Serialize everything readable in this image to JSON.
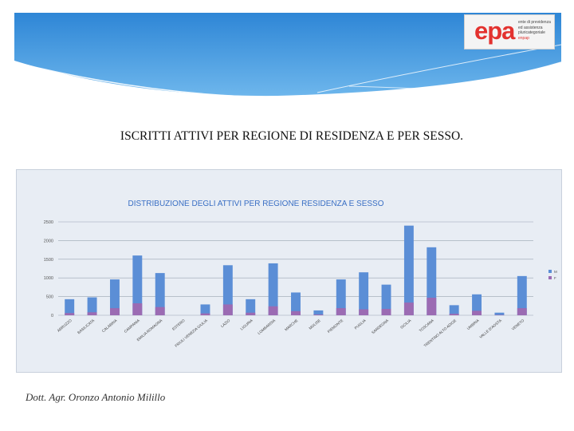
{
  "logo": {
    "mark": "epa",
    "lines": [
      "ente di previdenza",
      "ed assistenza",
      "pluricategoriale"
    ],
    "sub": "enpap"
  },
  "slide": {
    "title": "ISCRITTI ATTIVI PER REGIONE DI RESIDENZA E PER SESSO.",
    "footer": "Dott. Agr. Oronzo Antonio Milillo"
  },
  "colors": {
    "series_m": "#5b8ed6",
    "series_f": "#9b6bb3",
    "chart_title": "#3a6fc4",
    "banner": "#2f8bd8"
  },
  "chart_data": {
    "type": "bar",
    "title": "DISTRIBUZIONE DEGLI  ATTIVI PER REGIONE RESIDENZA E SESSO",
    "ylim": [
      0,
      2500
    ],
    "yticks": [
      0,
      500,
      1000,
      1500,
      2000,
      2500
    ],
    "grid": true,
    "legend_position": "right",
    "categories": [
      "ABRUZZO",
      "BASILICATA",
      "CALABRIA",
      "CAMPANIA",
      "EMILIA ROMAGNA",
      "ESTERO",
      "FRIULI VENEZIA GIULIA",
      "LAZIO",
      "LIGURIA",
      "LOMBARDIA",
      "MARCHE",
      "MOLISE",
      "PIEMONTE",
      "PUGLIA",
      "SARDEGNA",
      "SICILIA",
      "TOSCANA",
      "TRENTINO ALTO ADIGE",
      "UMBRIA",
      "VALLE D'AOSTA",
      "VENETO"
    ],
    "series": [
      {
        "name": "M",
        "values": [
          430,
          480,
          960,
          1600,
          1130,
          0,
          290,
          1340,
          430,
          1390,
          610,
          130,
          960,
          1150,
          820,
          2400,
          1820,
          270,
          560,
          70,
          1050
        ]
      },
      {
        "name": "F",
        "values": [
          60,
          80,
          190,
          320,
          220,
          0,
          50,
          290,
          70,
          240,
          110,
          20,
          190,
          160,
          170,
          340,
          470,
          40,
          120,
          10,
          190
        ]
      }
    ]
  }
}
